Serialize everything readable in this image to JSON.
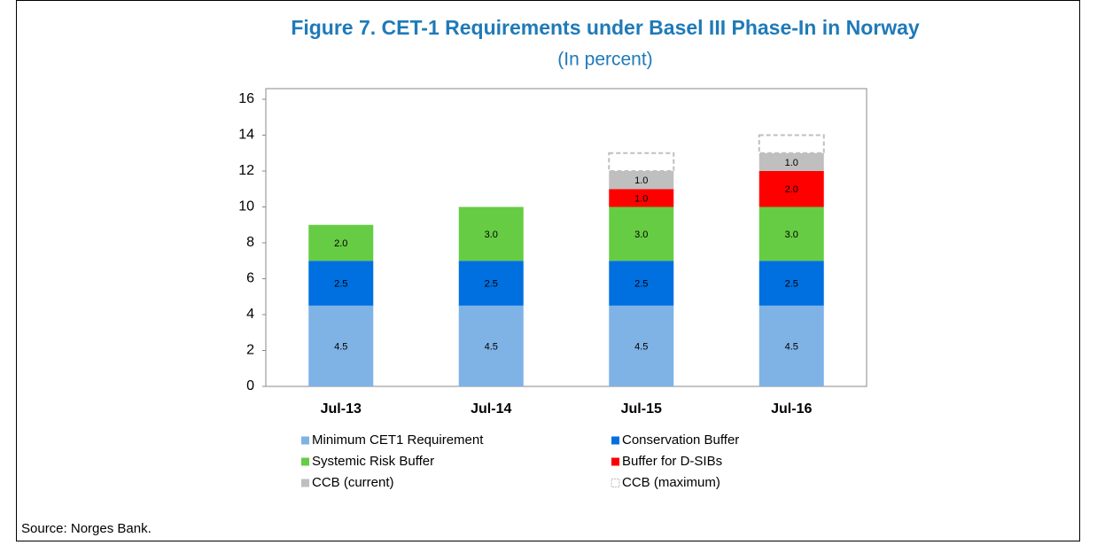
{
  "chart_data": {
    "type": "stacked_bar",
    "title": "Figure 7. CET-1 Requirements under Basel III Phase-In in Norway",
    "subtitle": "(In percent)",
    "categories": [
      "Jul-13",
      "Jul-14",
      "Jul-15",
      "Jul-16"
    ],
    "series": [
      {
        "name": "Minimum CET1 Requirement",
        "color": "#7fb2e5",
        "values": [
          4.5,
          4.5,
          4.5,
          4.5
        ],
        "value_labels": [
          "4.5",
          "4.5",
          "4.5",
          "4.5"
        ]
      },
      {
        "name": "Conservation Buffer",
        "color": "#0070e0",
        "values": [
          2.5,
          2.5,
          2.5,
          2.5
        ],
        "value_labels": [
          "2.5",
          "2.5",
          "2.5",
          "2.5"
        ]
      },
      {
        "name": "Systemic Risk Buffer",
        "color": "#66cc44",
        "values": [
          2,
          3,
          3,
          3
        ],
        "value_labels": [
          "2.0",
          "3.0",
          "3.0",
          "3.0"
        ]
      },
      {
        "name": "Buffer for D-SIBs",
        "color": "#ff0000",
        "values": [
          null,
          null,
          1,
          2
        ],
        "value_labels": [
          null,
          null,
          "1.0",
          "2.0"
        ]
      },
      {
        "name": "CCB (current)",
        "color": "#bfbfbf",
        "values": [
          null,
          null,
          1,
          1
        ],
        "value_labels": [
          null,
          null,
          "1.0",
          "1.0"
        ]
      },
      {
        "name": "CCB (maximum)",
        "color": "#bfbfbf",
        "dashed": true,
        "values": [
          null,
          null,
          1,
          1
        ]
      }
    ],
    "ylim": [
      0,
      16
    ],
    "yticks": [
      0,
      2,
      4,
      6,
      8,
      10,
      12,
      14,
      16
    ]
  },
  "source": "Source: Norges Bank."
}
